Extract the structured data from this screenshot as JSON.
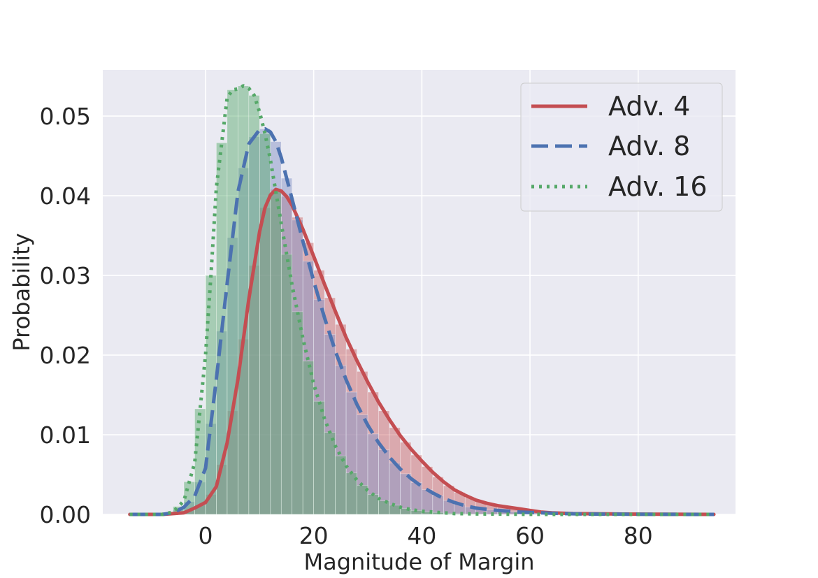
{
  "chart_data": {
    "type": "histogram",
    "title": "",
    "xlabel": "Magnitude of Margin",
    "ylabel": "Probability",
    "xlim": [
      -19,
      98
    ],
    "ylim": [
      0,
      0.0558
    ],
    "xticks": [
      0,
      20,
      40,
      60,
      80
    ],
    "yticks": [
      0.0,
      0.01,
      0.02,
      0.03,
      0.04,
      0.05
    ],
    "grid": true,
    "legend_position": "top-right",
    "colors": {
      "background": "#eaeaf2",
      "grid": "#ffffff",
      "axis_text": "#262626",
      "hist_adv4": "#c44e52",
      "hist_adv8": "#8a98c8",
      "hist_adv16": "#55a868"
    },
    "series": [
      {
        "name": "Adv. 4",
        "color": "#c44e52",
        "line_style": "solid",
        "curve": {
          "x": [
            -14,
            -8,
            -4,
            -2,
            0,
            2,
            4,
            6,
            8,
            10,
            11,
            12,
            13,
            14,
            15,
            16,
            18,
            20,
            22,
            24,
            26,
            28,
            30,
            32,
            34,
            36,
            38,
            40,
            42,
            44,
            46,
            48,
            50,
            52,
            54,
            56,
            58,
            60,
            62,
            64,
            68,
            72,
            76,
            80,
            85,
            90,
            94
          ],
          "y": [
            0,
            0,
            0.0002,
            0.0008,
            0.0015,
            0.0035,
            0.009,
            0.017,
            0.027,
            0.0355,
            0.0385,
            0.0401,
            0.0408,
            0.0406,
            0.0399,
            0.0388,
            0.0358,
            0.0324,
            0.0289,
            0.0255,
            0.0222,
            0.0193,
            0.0166,
            0.0141,
            0.0119,
            0.0099,
            0.0082,
            0.0067,
            0.0053,
            0.0041,
            0.0031,
            0.0024,
            0.0018,
            0.0014,
            0.0011,
            0.0009,
            0.0007,
            0.0005,
            0.0003,
            0.0002,
            0.0001,
            8e-05,
            5e-05,
            3e-05,
            2e-05,
            1e-05,
            0
          ]
        }
      },
      {
        "name": "Adv. 8",
        "color": "#4c72b0",
        "line_style": "dashed",
        "curve": {
          "x": [
            -14,
            -8,
            -6,
            -4,
            -2,
            0,
            2,
            4,
            6,
            8,
            10,
            11,
            12,
            13,
            14,
            16,
            18,
            20,
            22,
            24,
            26,
            28,
            30,
            32,
            34,
            36,
            38,
            40,
            42,
            44,
            46,
            48,
            50,
            54,
            58,
            62,
            66,
            70,
            80,
            90,
            94
          ],
          "y": [
            0,
            0,
            0.0002,
            0.0009,
            0.0023,
            0.0058,
            0.017,
            0.029,
            0.0405,
            0.0465,
            0.0483,
            0.0484,
            0.048,
            0.0468,
            0.0448,
            0.0396,
            0.0343,
            0.0293,
            0.0247,
            0.0205,
            0.0169,
            0.0138,
            0.0112,
            0.009,
            0.0072,
            0.0057,
            0.0045,
            0.0035,
            0.0027,
            0.002,
            0.0015,
            0.0011,
            0.0008,
            0.0005,
            0.0003,
            0.0002,
            0.0001,
            5e-05,
            2e-05,
            0,
            0
          ]
        }
      },
      {
        "name": "Adv. 16",
        "color": "#55a868",
        "line_style": "dotted",
        "curve": {
          "x": [
            -14,
            -8,
            -6,
            -4,
            -2,
            0,
            1,
            2,
            4,
            5,
            6,
            7,
            8,
            9,
            10,
            11,
            12,
            14,
            16,
            18,
            20,
            22,
            24,
            26,
            28,
            30,
            32,
            34,
            36,
            38,
            40,
            42,
            44,
            46,
            50,
            55,
            60,
            65,
            70,
            80,
            90,
            94
          ],
          "y": [
            0,
            0,
            0.0003,
            0.0017,
            0.0065,
            0.02,
            0.03,
            0.041,
            0.0523,
            0.0533,
            0.0534,
            0.0538,
            0.0535,
            0.0526,
            0.0505,
            0.0478,
            0.0445,
            0.0365,
            0.0288,
            0.0221,
            0.0164,
            0.012,
            0.0086,
            0.0061,
            0.0043,
            0.003,
            0.002,
            0.0014,
            0.0009,
            0.0006,
            0.0004,
            0.0003,
            0.0002,
            0.0001,
            6e-05,
            3e-05,
            1e-05,
            0,
            0,
            0,
            0,
            0
          ]
        }
      }
    ]
  }
}
